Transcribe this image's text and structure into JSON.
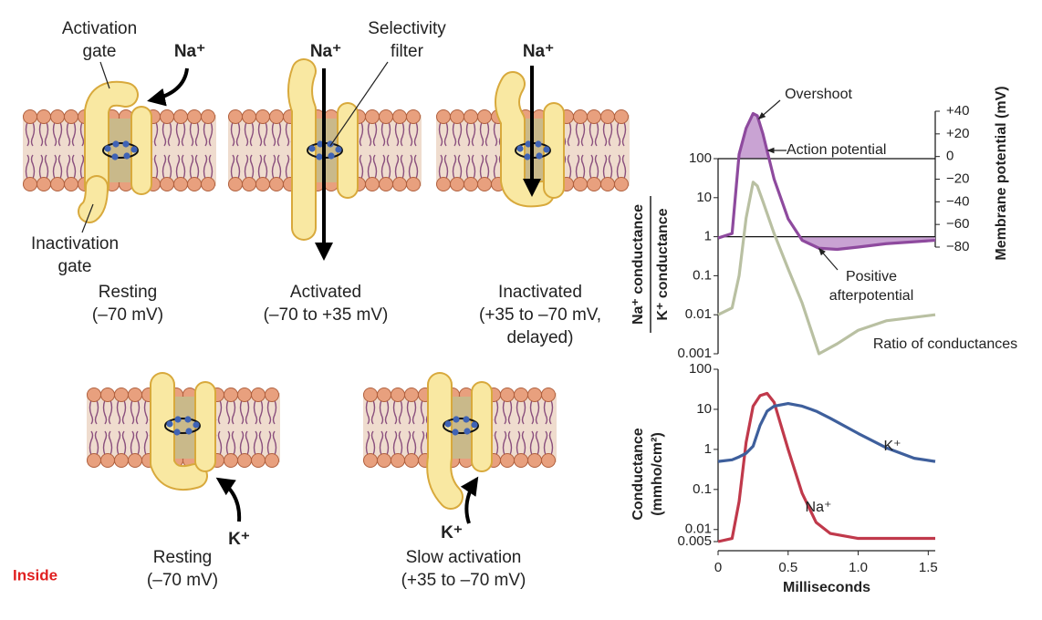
{
  "diagram": {
    "labels": [
      "Activation",
      "gate",
      "Na⁺",
      "Na⁺",
      "Selectivity",
      "filter",
      "Na⁺",
      "Inactivation",
      "gate",
      "Resting",
      "(–70 mV)",
      "Activated",
      "(–70 to +35 mV)",
      "Inactivated",
      "(+35 to –70 mV,",
      "delayed)",
      "K⁺",
      "Resting",
      "(–70 mV)",
      "K⁺",
      "Slow activation",
      "(+35 to –70 mV)",
      "Inside"
    ]
  },
  "chart_data": [
    {
      "type": "line",
      "y_label": [
        "Na⁺ conductance",
        "K⁺ conductance"
      ],
      "y2_label": "Membrane potential (mV)",
      "annotations": [
        "Overshoot",
        "Positive",
        "afterpotential"
      ],
      "x": [
        0,
        0.1,
        0.15,
        0.2,
        0.25,
        0.28,
        0.32,
        0.4,
        0.5,
        0.6,
        0.72,
        0.85,
        1.0,
        1.2,
        1.55
      ],
      "xlim": [
        0,
        1.55
      ],
      "y_log": true,
      "ylim": [
        0.001,
        100
      ],
      "yticks": [
        0.001,
        0.01,
        0.1,
        1,
        10,
        100
      ],
      "y2lim": [
        -80,
        40
      ],
      "y2ticks": [
        {
          "value": 40,
          "label": "+40"
        },
        {
          "value": 20,
          "label": "+20"
        },
        0,
        {
          "value": -20,
          "label": "−20"
        },
        {
          "value": -40,
          "label": "−40"
        },
        {
          "value": -60,
          "label": "−60"
        },
        {
          "value": -80,
          "label": "−80"
        }
      ],
      "series": [
        {
          "name": "Action potential",
          "color": "#8e4a9e",
          "axis": "y2",
          "values": [
            -72,
            -68,
            2,
            25,
            38,
            36,
            20,
            -20,
            -55,
            -74,
            -81,
            -82,
            -80,
            -77,
            -74
          ]
        },
        {
          "name": "Ratio of conductances",
          "color": "#b9c0a2",
          "values": [
            0.01,
            0.015,
            0.1,
            3,
            25,
            20,
            8,
            1.2,
            0.15,
            0.02,
            0.001,
            0.0018,
            0.004,
            0.007,
            0.01
          ]
        }
      ]
    },
    {
      "type": "line",
      "y_label": [
        "Conductance",
        "(mmho/cm²)"
      ],
      "x_label": "Milliseconds",
      "x": [
        0,
        0.1,
        0.15,
        0.2,
        0.25,
        0.3,
        0.35,
        0.4,
        0.5,
        0.6,
        0.7,
        0.8,
        1.0,
        1.2,
        1.4,
        1.55
      ],
      "xlim": [
        0,
        1.55
      ],
      "xticks": [
        0,
        0.5,
        {
          "value": 1,
          "label": "1.0"
        },
        1.5
      ],
      "y_log": true,
      "ylim": [
        0.005,
        100
      ],
      "yticks": [
        0.005,
        0.01,
        0.1,
        1,
        10,
        100
      ],
      "series": [
        {
          "name": "Na⁺",
          "color": "#c0394b",
          "values": [
            0.005,
            0.006,
            0.05,
            1.5,
            12,
            22,
            25,
            15,
            1,
            0.08,
            0.015,
            0.008,
            0.006,
            0.006,
            0.006,
            0.006
          ]
        },
        {
          "name": "K⁺",
          "color": "#3e5f9c",
          "values": [
            0.5,
            0.55,
            0.65,
            0.8,
            1.2,
            4,
            9,
            12,
            14,
            12,
            9,
            6,
            2.5,
            1.1,
            0.6,
            0.5
          ]
        }
      ]
    }
  ]
}
